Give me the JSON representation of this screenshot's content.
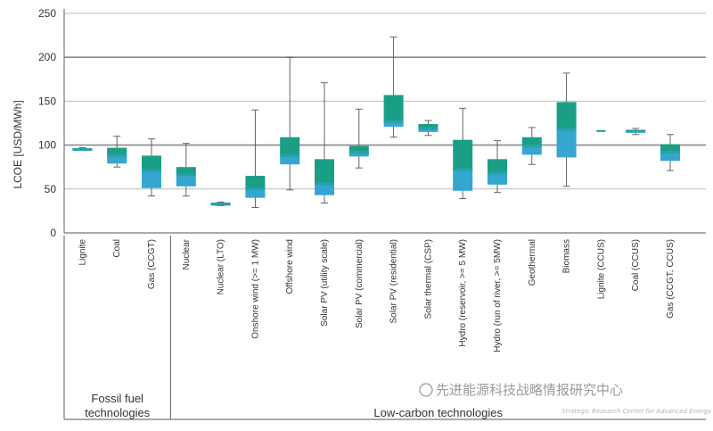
{
  "chart_data": {
    "type": "box",
    "ylabel": "LCOE [USD/MWh]",
    "ylim": [
      0,
      250
    ],
    "yticks": [
      "0",
      "50",
      "100",
      "150",
      "200",
      "250"
    ],
    "grid": "horizontal, heavier at 100 and 200",
    "categories": [
      "Lignite",
      "Coal",
      "Gas (CCGT)",
      "Nuclear",
      "Nuclear (LTO)",
      "Onshore wind (>= 1 MW)",
      "Offshore wind",
      "Solar PV (utility scale)",
      "Solar PV (commercial)",
      "Solar PV (residential)",
      "Solar thermal (CSP)",
      "Hydro (reservoir, >= 5 MW)",
      "Hydro (run of river, >= 5MW)",
      "Geothermal",
      "Biomass",
      "Lignite (CCUS)",
      "Coal (CCUS)",
      "Gas (CCGT, CCUS)"
    ],
    "boxes": [
      {
        "min": 94,
        "q1": 94,
        "median": 95,
        "q3": 96,
        "max": 97
      },
      {
        "min": 75,
        "q1": 79,
        "median": 88,
        "q3": 97,
        "max": 110
      },
      {
        "min": 42,
        "q1": 51,
        "median": 71,
        "q3": 88,
        "max": 107
      },
      {
        "min": 42,
        "q1": 53,
        "median": 66,
        "q3": 75,
        "max": 102
      },
      {
        "min": 31,
        "q1": 31,
        "median": 33,
        "q3": 34,
        "max": 35
      },
      {
        "min": 29,
        "q1": 40,
        "median": 50,
        "q3": 65,
        "max": 140
      },
      {
        "min": 49,
        "q1": 78,
        "median": 88,
        "q3": 109,
        "max": 200
      },
      {
        "min": 34,
        "q1": 43,
        "median": 56,
        "q3": 84,
        "max": 171
      },
      {
        "min": 74,
        "q1": 87,
        "median": 92,
        "q3": 99,
        "max": 141
      },
      {
        "min": 109,
        "q1": 121,
        "median": 127,
        "q3": 157,
        "max": 223
      },
      {
        "min": 111,
        "q1": 115,
        "median": 119,
        "q3": 124,
        "max": 128
      },
      {
        "min": 39,
        "q1": 48,
        "median": 72,
        "q3": 106,
        "max": 142
      },
      {
        "min": 46,
        "q1": 55,
        "median": 68,
        "q3": 84,
        "max": 105
      },
      {
        "min": 78,
        "q1": 89,
        "median": 99,
        "q3": 109,
        "max": 120
      },
      {
        "min": 53,
        "q1": 86,
        "median": 118,
        "q3": 149,
        "max": 182
      },
      {
        "min": 116,
        "q1": 116,
        "median": 116,
        "q3": 116,
        "max": 116
      },
      {
        "min": 112,
        "q1": 114,
        "median": 116,
        "q3": 117,
        "max": 119
      },
      {
        "min": 71,
        "q1": 82,
        "median": 92,
        "q3": 101,
        "max": 112
      }
    ],
    "groups": [
      {
        "label_lines": [
          "Fossil fuel",
          "technologies"
        ],
        "count": 3
      },
      {
        "label_lines": [
          "Low-carbon technologies"
        ],
        "count": 15
      }
    ],
    "colors": {
      "upper_box": "#1a9f86",
      "lower_box": "#34a6cf",
      "mid_band": "#27a2aa",
      "whisker": "#555555",
      "grid": "#bdbdbd",
      "grid_strong": "#8a8a8a"
    }
  },
  "watermark": {
    "text": "先进能源科技战略情报研究中心",
    "sub": "Strategic Research Center for Advanced Energy Network"
  }
}
